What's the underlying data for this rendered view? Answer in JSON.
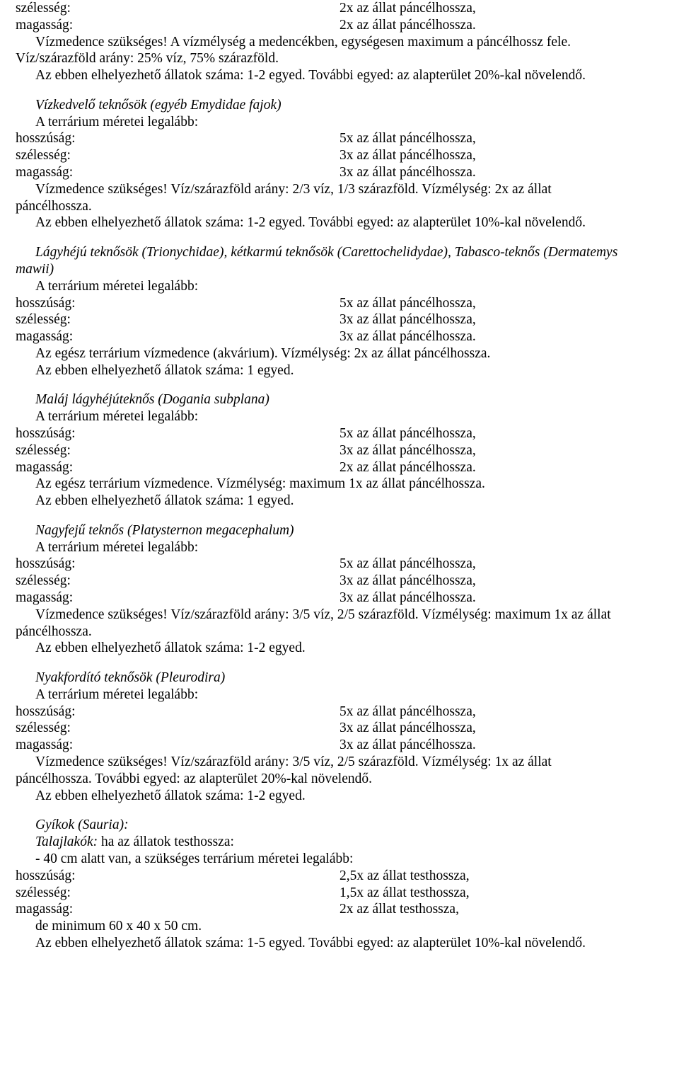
{
  "labels": {
    "length": "hosszúság:",
    "width": "szélesség:",
    "height": "magasság:"
  },
  "common": {
    "terrarium_intro": "A terrárium méretei legalább:"
  },
  "section0": {
    "width_val": "2x az állat páncélhossza,",
    "height_val": "2x az állat páncélhossza.",
    "line1": "Vízmedence szükséges! A vízmélység a medencékben, egységesen maximum a páncélhossz fele.",
    "line2": "Víz/szárazföld arány: 25% víz, 75% szárazföld.",
    "line3": "Az ebben elhelyezhető állatok száma: 1-2 egyed. További egyed: az alapterület 20%-kal növelendő."
  },
  "section1": {
    "title": "Vízkedvelő teknősök (egyéb Emydidae fajok)",
    "length_val": "5x az állat páncélhossza,",
    "width_val": "3x az állat páncélhossza,",
    "height_val": "3x az állat páncélhossza.",
    "note_pre": "Vízmedence szükséges! Víz/szárazföld arány: 2/3 víz, 1/3 szárazföld. Vízmélység: 2x az állat",
    "note_wrap": "páncélhossza.",
    "line2": "Az ebben elhelyezhető állatok száma: 1-2 egyed. További egyed: az alapterület 10%-kal növelendő."
  },
  "section2": {
    "title_pre": "Lágyhéjú teknősök (Trionychidae), kétkarmú teknősök (Carettochelidydae), Tabasco-teknős (Dermatemys",
    "title_wrap": "mawii)",
    "length_val": "5x az állat páncélhossza,",
    "width_val": "3x az állat páncélhossza,",
    "height_val": "3x az állat páncélhossza.",
    "line1": "Az egész terrárium vízmedence (akvárium). Vízmélység: 2x az állat páncélhossza.",
    "line2": "Az ebben elhelyezhető állatok száma: 1 egyed."
  },
  "section3": {
    "title": "Maláj lágyhéjúteknős (Dogania subplana)",
    "length_val": "5x az állat páncélhossza,",
    "width_val": "3x az állat páncélhossza,",
    "height_val": "2x az állat páncélhossza.",
    "line1": "Az egész terrárium vízmedence. Vízmélység: maximum 1x az állat páncélhossza.",
    "line2": "Az ebben elhelyezhető állatok száma: 1 egyed."
  },
  "section4": {
    "title": "Nagyfejű teknős (Platysternon megacephalum)",
    "length_val": "5x az állat páncélhossza,",
    "width_val": "3x az állat páncélhossza,",
    "height_val": "3x az állat páncélhossza.",
    "note_pre": "Vízmedence szükséges! Víz/szárazföld arány: 3/5 víz, 2/5 szárazföld. Vízmélység: maximum 1x az állat",
    "note_wrap": "páncélhossza.",
    "line2": "Az ebben elhelyezhető állatok száma: 1-2 egyed."
  },
  "section5": {
    "title": "Nyakfordító teknősök (Pleurodira)",
    "length_val": "5x az állat páncélhossza,",
    "width_val": "3x az állat páncélhossza,",
    "height_val": "3x az állat páncélhossza.",
    "note_pre": "Vízmedence szükséges! Víz/szárazföld arány: 3/5 víz, 2/5 szárazföld. Vízmélység: 1x az állat",
    "note_wrap": "páncélhossza. További egyed: az alapterület 20%-kal növelendő.",
    "line2": "Az ebben elhelyezhető állatok száma: 1-2 egyed."
  },
  "section6": {
    "title": "Gyíkok (Sauria):",
    "subhead_pre": "Talajlakók:",
    "subhead_rest": " ha az állatok testhossza:",
    "line1": "- 40 cm alatt van, a szükséges terrárium méretei legalább:",
    "length_val": "2,5x az állat testhossza,",
    "width_val": "1,5x az állat testhossza,",
    "height_val": "2x az állat testhossza,",
    "line2": "de minimum 60 x 40 x 50 cm.",
    "line3": "Az ebben elhelyezhető állatok száma: 1-5 egyed. További egyed: az alapterület 10%-kal növelendő."
  }
}
